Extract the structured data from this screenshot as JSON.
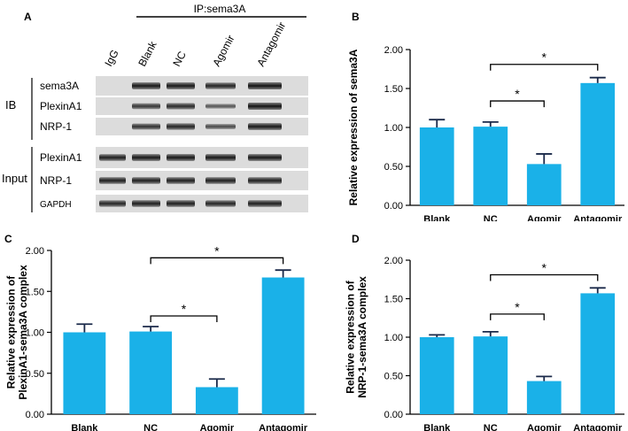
{
  "panels": {
    "a": "A",
    "b": "B",
    "c": "C",
    "d": "D"
  },
  "blot": {
    "ip_label": "IP:sema3A",
    "lanes": [
      "IgG",
      "Blank",
      "NC",
      "Agomir",
      "Antagomir"
    ],
    "ib_group": "IB",
    "input_group": "Input",
    "ib_rows": [
      "sema3A",
      "PlexinA1",
      "NRP-1"
    ],
    "input_rows": [
      "PlexinA1",
      "NRP-1",
      "GAPDH"
    ]
  },
  "chart_data": [
    {
      "type": "bar",
      "panel": "B",
      "ylabel": "Relative expression of sema3A",
      "categories": [
        "Blank",
        "NC",
        "Agomir",
        "Antagomir"
      ],
      "values": [
        1.0,
        1.01,
        0.53,
        1.57
      ],
      "errors": [
        0.1,
        0.06,
        0.13,
        0.07
      ],
      "ylim": [
        0,
        2.0
      ],
      "yticks": [
        "0.00",
        "0.50",
        "1.00",
        "1.50",
        "2.00"
      ],
      "significance": [
        {
          "from": "NC",
          "to": "Agomir",
          "label": "*",
          "y": 1.34
        },
        {
          "from": "NC",
          "to": "Antagomir",
          "label": "*",
          "y": 1.81
        }
      ],
      "bar_color": "#1ab1e8"
    },
    {
      "type": "bar",
      "panel": "C",
      "ylabel": "Relative expression of PlexinA1-sema3A complex",
      "categories": [
        "Blank",
        "NC",
        "Agomir",
        "Antagomir"
      ],
      "values": [
        1.0,
        1.01,
        0.33,
        1.67
      ],
      "errors": [
        0.1,
        0.06,
        0.1,
        0.09
      ],
      "ylim": [
        0,
        2.0
      ],
      "yticks": [
        "0.00",
        "0.50",
        "1.00",
        "1.50",
        "2.00"
      ],
      "significance": [
        {
          "from": "NC",
          "to": "Agomir",
          "label": "*",
          "y": 1.2
        },
        {
          "from": "NC",
          "to": "Antagomir",
          "label": "*",
          "y": 1.91
        }
      ],
      "bar_color": "#1ab1e8"
    },
    {
      "type": "bar",
      "panel": "D",
      "ylabel": "Relative expression of NRP-1-sema3A complex",
      "categories": [
        "Blank",
        "NC",
        "Agomir",
        "Antagomir"
      ],
      "values": [
        1.0,
        1.01,
        0.43,
        1.57
      ],
      "errors": [
        0.03,
        0.06,
        0.06,
        0.07
      ],
      "ylim": [
        0,
        2.0
      ],
      "yticks": [
        "0.00",
        "0.50",
        "1.00",
        "1.50",
        "2.00"
      ],
      "significance": [
        {
          "from": "NC",
          "to": "Agomir",
          "label": "*",
          "y": 1.3
        },
        {
          "from": "NC",
          "to": "Antagomir",
          "label": "*",
          "y": 1.81
        }
      ],
      "bar_color": "#1ab1e8"
    }
  ]
}
